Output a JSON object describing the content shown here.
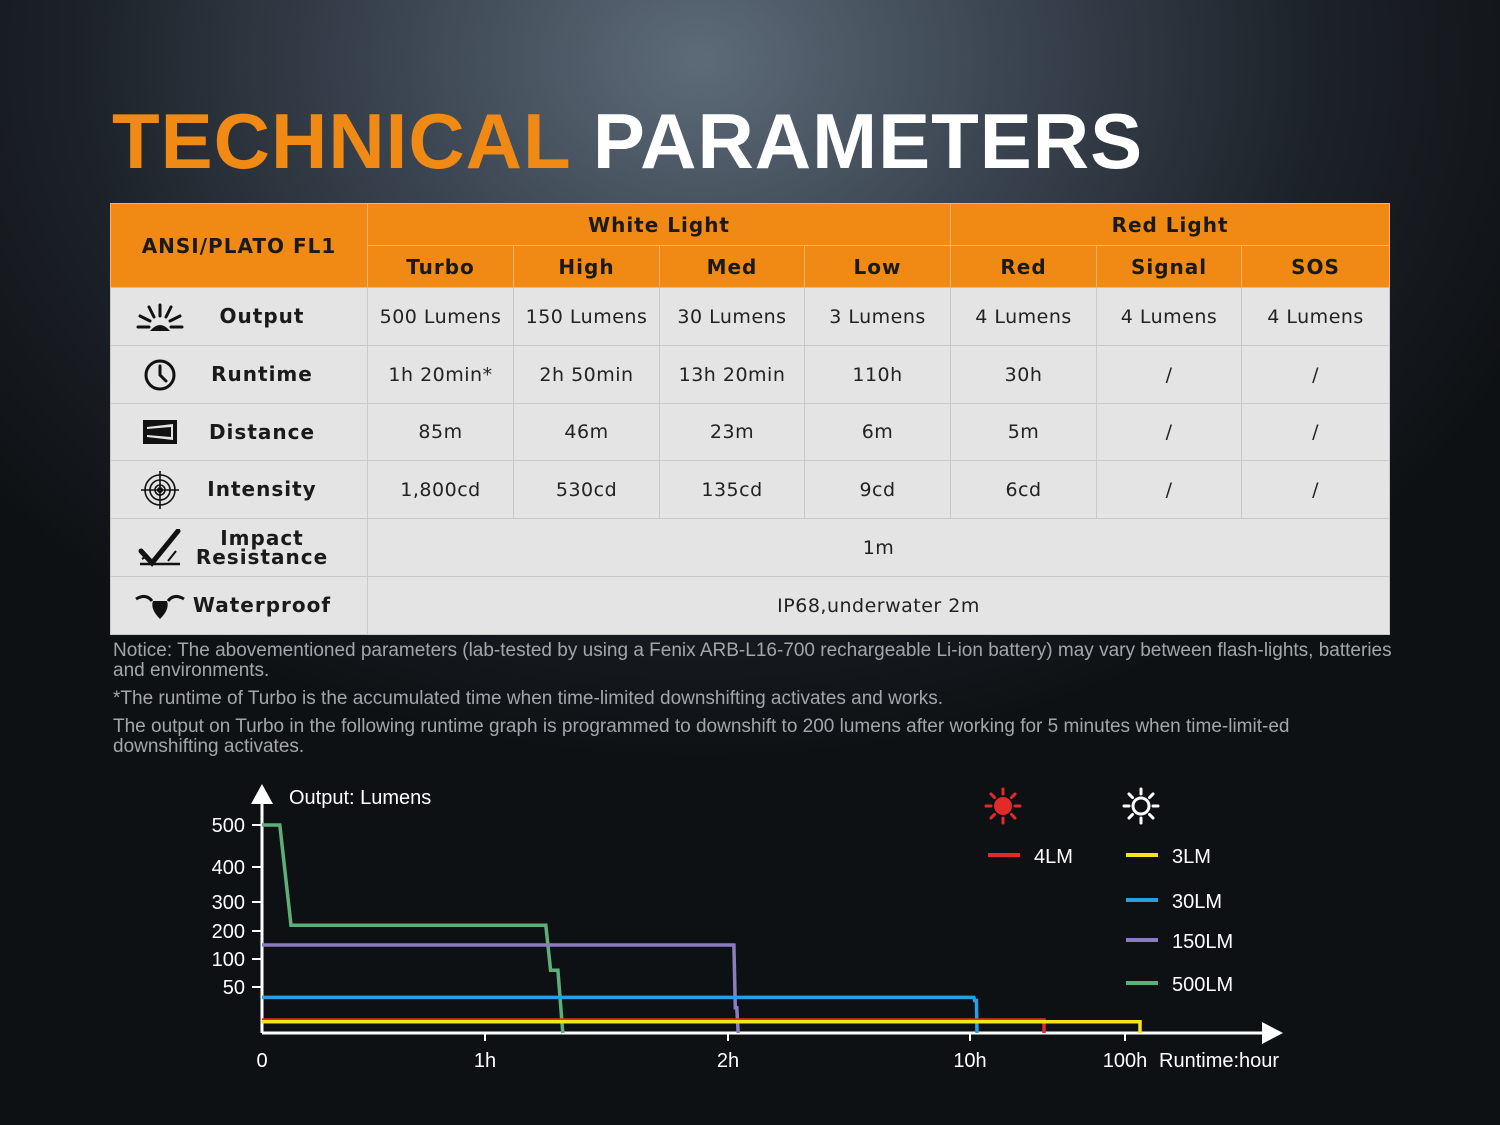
{
  "title": {
    "part1": "TECHNICAL",
    "part2": "PARAMETERS"
  },
  "table": {
    "standard_label": "ANSI/PLATO FL1",
    "groups": [
      "White Light",
      "Red Light"
    ],
    "modes": [
      "Turbo",
      "High",
      "Med",
      "Low",
      "Red",
      "Signal",
      "SOS"
    ],
    "rows": [
      {
        "icon": "output-icon",
        "label": "Output",
        "values": [
          "500 Lumens",
          "150 Lumens",
          "30 Lumens",
          "3 Lumens",
          "4 Lumens",
          "4 Lumens",
          "4 Lumens"
        ]
      },
      {
        "icon": "clock-icon",
        "label": "Runtime",
        "values": [
          "1h 20min*",
          "2h 50min",
          "13h 20min",
          "110h",
          "30h",
          "/",
          "/"
        ]
      },
      {
        "icon": "beam-distance-icon",
        "label": "Distance",
        "values": [
          "85m",
          "46m",
          "23m",
          "6m",
          "5m",
          "/",
          "/"
        ]
      },
      {
        "icon": "target-icon",
        "label": "Intensity",
        "values": [
          "1,800cd",
          "530cd",
          "135cd",
          "9cd",
          "6cd",
          "/",
          "/"
        ]
      }
    ],
    "impact": {
      "icon": "impact-icon",
      "label_line1": "Impact",
      "label_line2": "Resistance",
      "value": "1m"
    },
    "waterproof": {
      "icon": "water-drop-icon",
      "label": "Waterproof",
      "value": "IP68,underwater 2m"
    }
  },
  "notes": [
    "Notice: The abovementioned parameters (lab-tested by using a Fenix ARB-L16-700 rechargeable Li-ion battery) may vary between flash-lights, batteries and environments.",
    "*The runtime of Turbo is the accumulated time when time-limited downshifting activates and works.",
    "The output on Turbo in the following runtime graph is programmed to downshift to 200 lumens after working for 5 minutes when time-limit-ed downshifting activates."
  ],
  "chart_data": {
    "type": "line",
    "ylabel": "Output: Lumens",
    "xlabel": "Runtime:hour",
    "y_ticks": [
      "500",
      "400",
      "300",
      "200",
      "100",
      "50"
    ],
    "x_ticks": [
      "0",
      "1h",
      "2h",
      "10h",
      "100h"
    ],
    "legend_icons": [
      "red-light-icon",
      "white-light-icon"
    ],
    "colors": {
      "4LM": "#e12a2a",
      "3LM": "#f5e41c",
      "30LM": "#2a9fe0",
      "150LM": "#8c7cc4",
      "500LM": "#5fae7a"
    },
    "series": [
      {
        "name": "500LM",
        "points": [
          [
            0,
            500
          ],
          [
            0.08,
            500
          ],
          [
            0.13,
            220
          ],
          [
            1.25,
            220
          ],
          [
            1.27,
            80
          ],
          [
            1.3,
            80
          ],
          [
            1.32,
            0
          ]
        ]
      },
      {
        "name": "150LM",
        "points": [
          [
            0,
            150
          ],
          [
            2.08,
            150
          ],
          [
            2.1,
            15
          ],
          [
            2.12,
            15
          ],
          [
            2.14,
            0
          ]
        ]
      },
      {
        "name": "30LM",
        "points": [
          [
            0,
            30
          ],
          [
            10.6,
            30
          ],
          [
            10.7,
            25
          ],
          [
            11.0,
            25
          ],
          [
            11.1,
            0
          ]
        ]
      },
      {
        "name": "4LM",
        "points": [
          [
            0,
            4
          ],
          [
            30,
            4
          ],
          [
            30,
            0
          ]
        ]
      },
      {
        "name": "3LM",
        "points": [
          [
            0,
            3
          ],
          [
            110,
            3
          ],
          [
            110,
            0
          ]
        ]
      }
    ],
    "legend": [
      "4LM",
      "3LM",
      "30LM",
      "150LM",
      "500LM"
    ],
    "legend_placement": "top-right"
  }
}
